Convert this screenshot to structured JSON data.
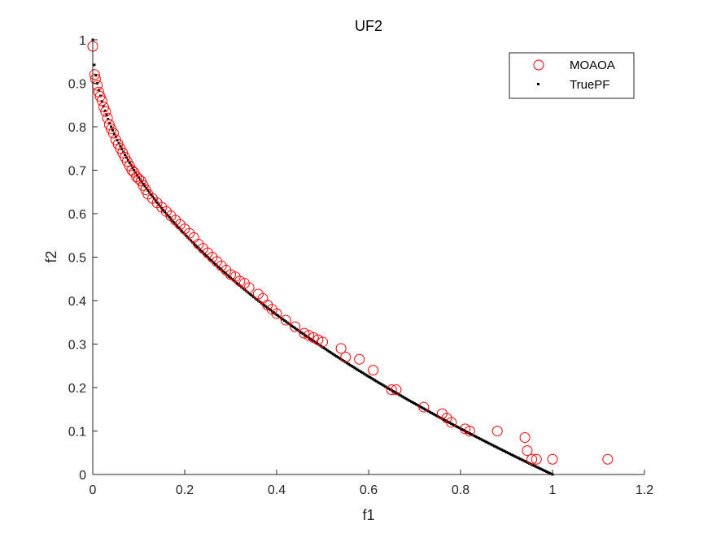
{
  "chart_data": {
    "type": "scatter",
    "title": "UF2",
    "xlabel": "f1",
    "ylabel": "f2",
    "xlim": [
      0,
      1.2
    ],
    "ylim": [
      0,
      1
    ],
    "xticks": [
      0,
      0.2,
      0.4,
      0.6,
      0.8,
      1,
      1.2
    ],
    "xtick_labels": [
      "0",
      "0.2",
      "0.4",
      "0.6",
      "0.8",
      "1",
      "1.2"
    ],
    "yticks": [
      0,
      0.1,
      0.2,
      0.3,
      0.4,
      0.5,
      0.6,
      0.7,
      0.8,
      0.9,
      1
    ],
    "ytick_labels": [
      "0",
      "0.1",
      "0.2",
      "0.3",
      "0.4",
      "0.5",
      "0.6",
      "0.7",
      "0.8",
      "0.9",
      "1"
    ],
    "grid": false,
    "legend_position": "top-right",
    "series": [
      {
        "name": "MOAOA",
        "marker": "circle-open",
        "color": "#ff0000",
        "x": [
          0.0,
          0.004,
          0.006,
          0.01,
          0.013,
          0.016,
          0.02,
          0.024,
          0.028,
          0.032,
          0.036,
          0.04,
          0.045,
          0.05,
          0.055,
          0.06,
          0.065,
          0.07,
          0.075,
          0.08,
          0.085,
          0.09,
          0.095,
          0.1,
          0.105,
          0.11,
          0.115,
          0.12,
          0.13,
          0.14,
          0.15,
          0.16,
          0.17,
          0.18,
          0.19,
          0.2,
          0.21,
          0.22,
          0.23,
          0.24,
          0.25,
          0.26,
          0.27,
          0.28,
          0.29,
          0.3,
          0.31,
          0.32,
          0.33,
          0.34,
          0.36,
          0.37,
          0.38,
          0.39,
          0.4,
          0.42,
          0.44,
          0.46,
          0.47,
          0.48,
          0.49,
          0.5,
          0.54,
          0.55,
          0.58,
          0.61,
          0.65,
          0.66,
          0.72,
          0.76,
          0.77,
          0.78,
          0.81,
          0.82,
          0.88,
          0.94,
          0.945,
          0.955,
          0.965,
          1.0,
          1.12
        ],
        "y": [
          0.985,
          0.92,
          0.91,
          0.895,
          0.88,
          0.87,
          0.86,
          0.845,
          0.835,
          0.82,
          0.805,
          0.795,
          0.785,
          0.77,
          0.76,
          0.75,
          0.74,
          0.73,
          0.72,
          0.71,
          0.7,
          0.695,
          0.685,
          0.68,
          0.675,
          0.665,
          0.655,
          0.645,
          0.635,
          0.625,
          0.615,
          0.605,
          0.595,
          0.585,
          0.575,
          0.565,
          0.555,
          0.545,
          0.53,
          0.52,
          0.51,
          0.5,
          0.49,
          0.48,
          0.47,
          0.46,
          0.455,
          0.445,
          0.44,
          0.43,
          0.415,
          0.405,
          0.39,
          0.38,
          0.37,
          0.355,
          0.34,
          0.325,
          0.32,
          0.315,
          0.31,
          0.305,
          0.29,
          0.27,
          0.265,
          0.24,
          0.195,
          0.195,
          0.155,
          0.14,
          0.13,
          0.12,
          0.105,
          0.1,
          0.1,
          0.085,
          0.055,
          0.035,
          0.035,
          0.035,
          0.035
        ]
      },
      {
        "name": "TruePF",
        "marker": "dot",
        "color": "#000000",
        "function": "f2 = 1 - sqrt(f1)",
        "x_range": [
          0,
          1
        ],
        "points": 300
      }
    ]
  }
}
